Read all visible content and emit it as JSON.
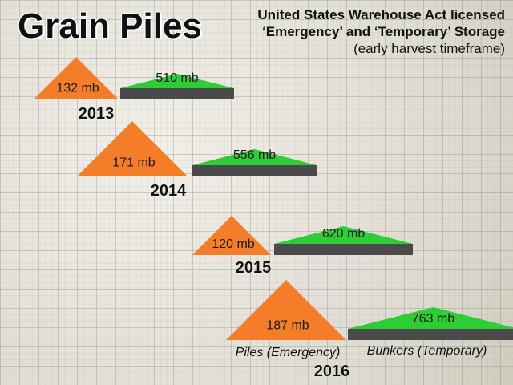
{
  "title": "Grain Piles",
  "subtitle": {
    "line1": "United States Warehouse Act licensed",
    "line2": "‘Emergency’ and ‘Temporary’ Storage",
    "line3": "(early harvest timeframe)"
  },
  "chart_data": {
    "type": "bar",
    "categories": [
      "2013",
      "2014",
      "2015",
      "2016"
    ],
    "unit": "mb",
    "series": [
      {
        "name": "Piles (Emergency)",
        "values": [
          132,
          171,
          120,
          187
        ],
        "color": "#f47d2a"
      },
      {
        "name": "Bunkers (Temporary)",
        "values": [
          510,
          556,
          620,
          763
        ],
        "color": "#2ecc35",
        "base_color": "#4a4a4a"
      }
    ],
    "legend": "inline labels under the 2016 group"
  }
}
